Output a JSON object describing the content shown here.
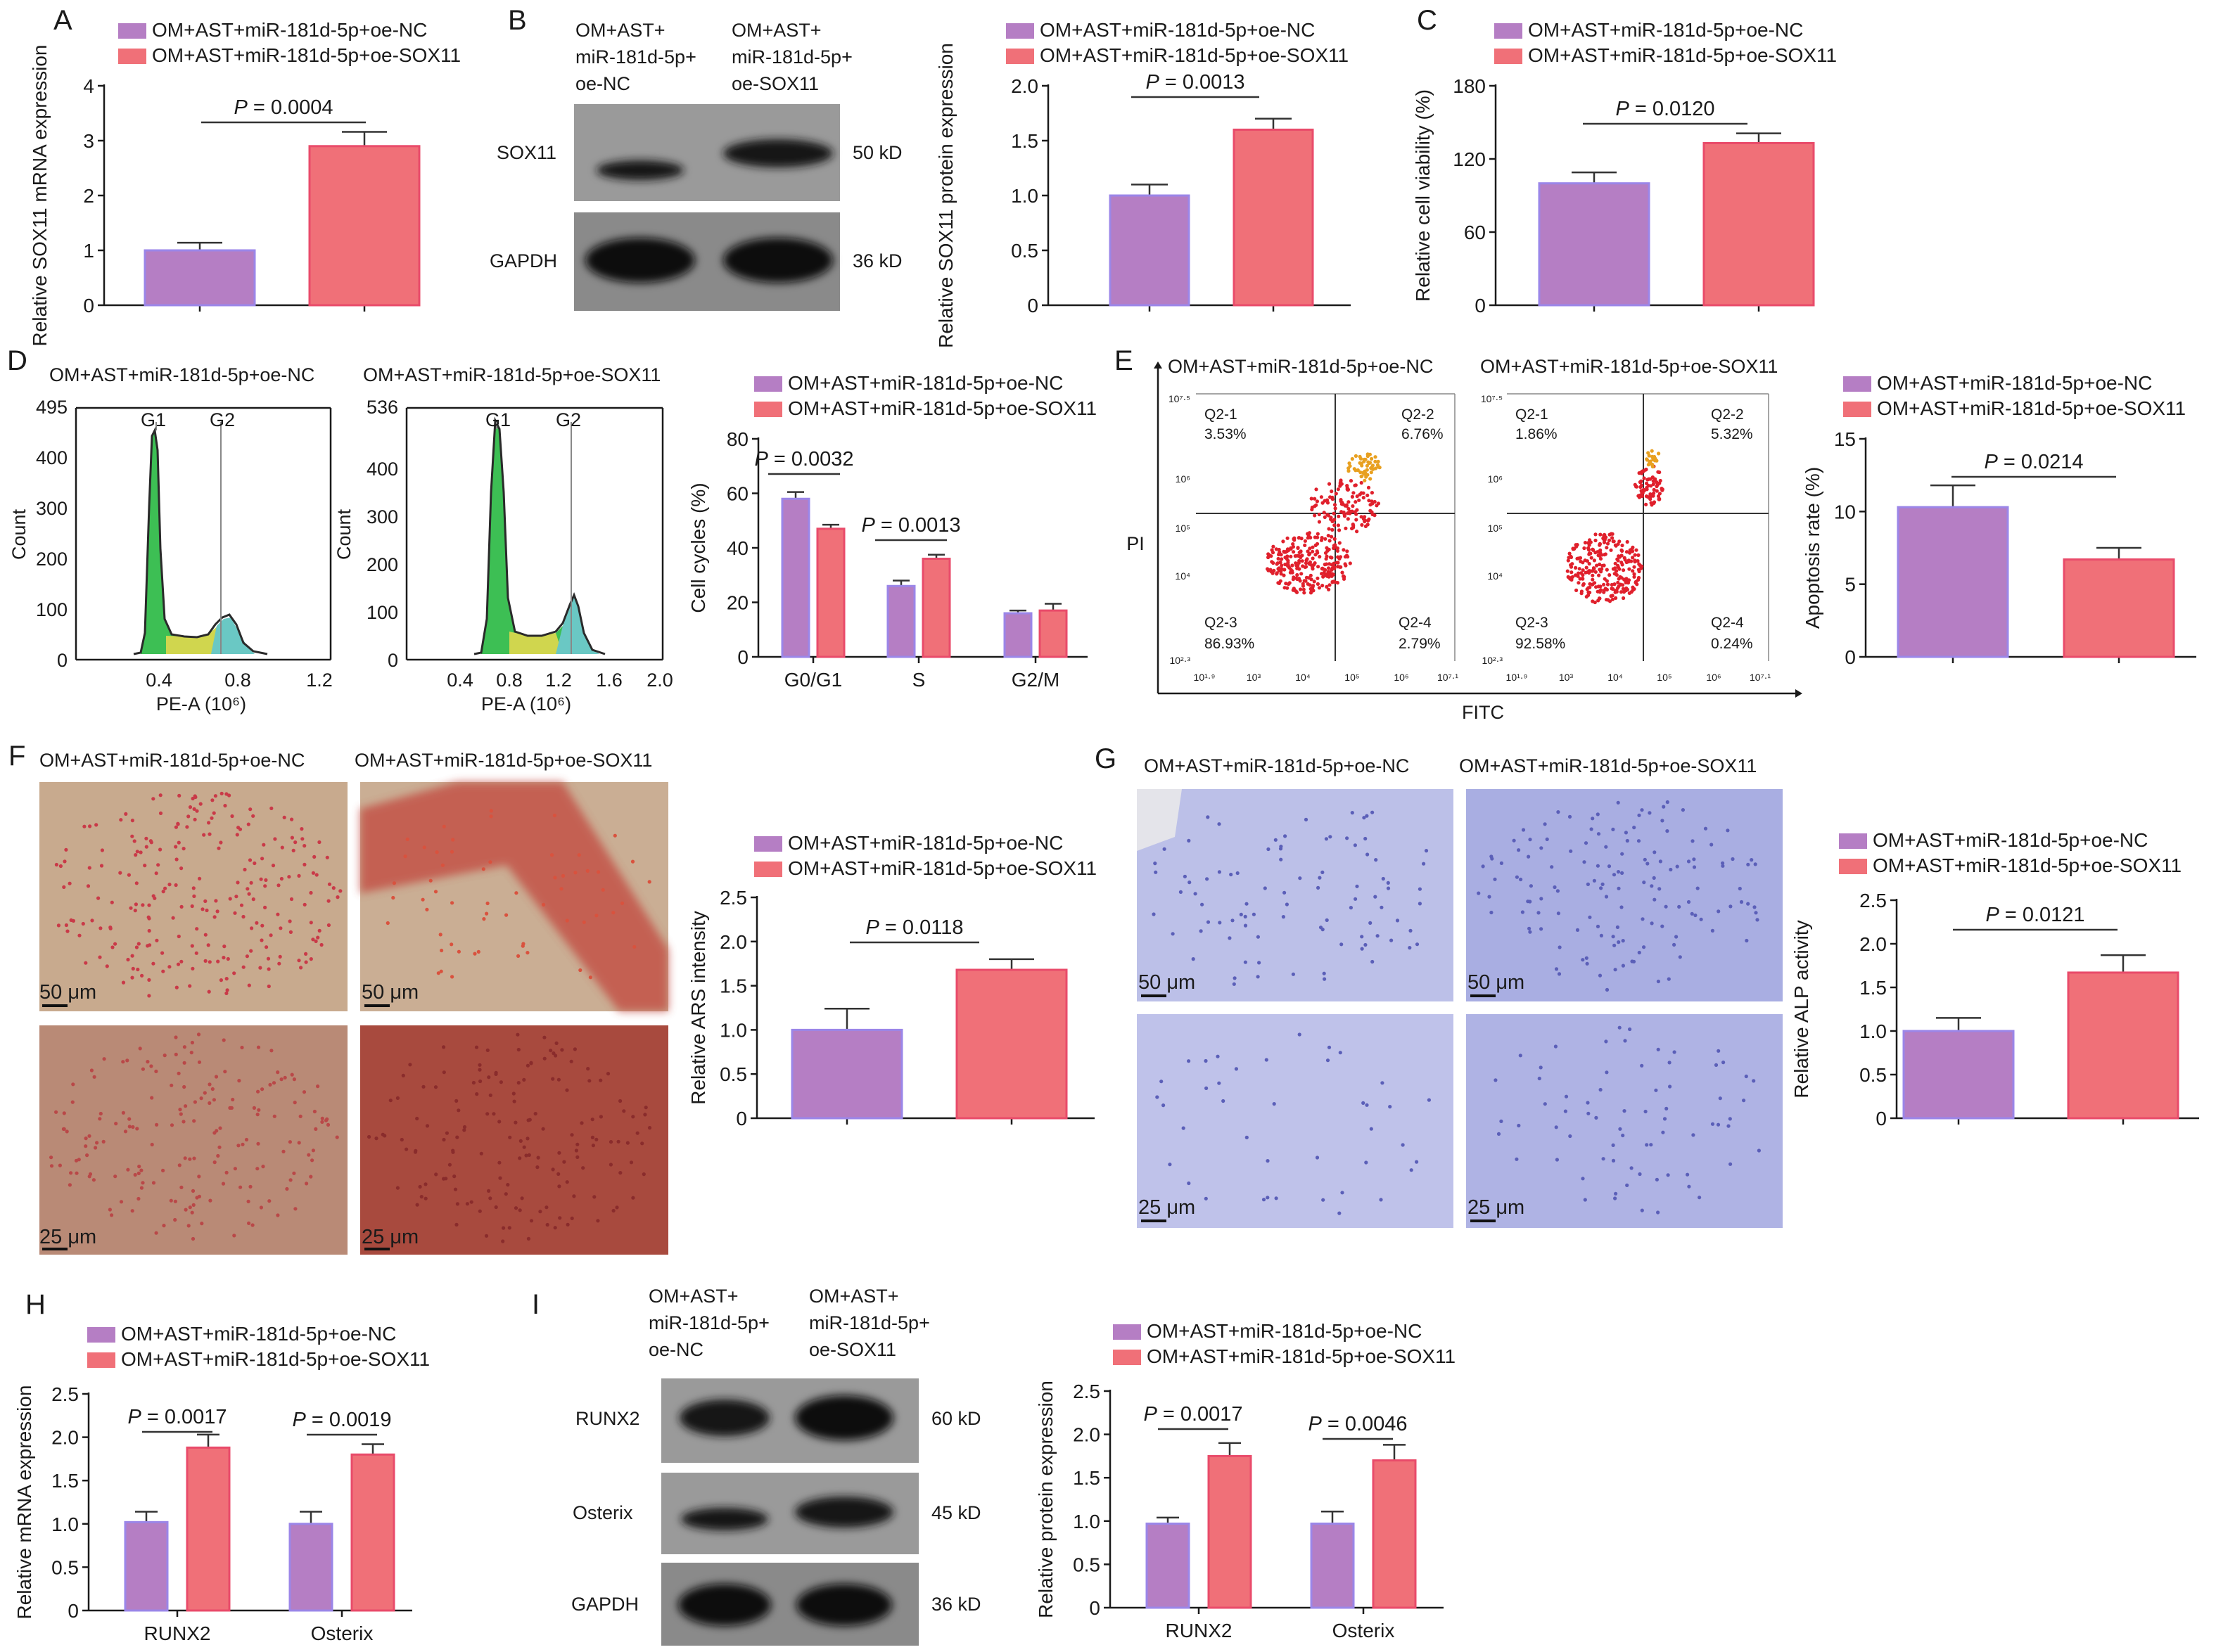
{
  "colors": {
    "nc": "#b57ec4",
    "nc_edge": "#9b86e8",
    "sox": "#f07078",
    "sox_edge": "#e94b6a",
    "axis": "#1a1a1a",
    "hist_green": "#3dbf54",
    "hist_yellow": "#d0d64e",
    "hist_teal": "#6ac8c4",
    "flow_red": "#e0202c",
    "blot_dark": "#141414",
    "blot_bg": "#8a8a8a",
    "ars_tissue": "#c9a98c",
    "ars_red": "#c23a3a",
    "alp_bg": "#b9bde6",
    "alp_cell": "#5b5fb8"
  },
  "groups": {
    "nc": "OM+AST+miR-181d-5p+oe-NC",
    "sox": "OM+AST+miR-181d-5p+oe-SOX11",
    "nc_blot": [
      "OM+AST+",
      "miR-181d-5p+",
      "oe-NC"
    ],
    "sox_blot": [
      "OM+AST+",
      "miR-181d-5p+",
      "oe-SOX11"
    ]
  },
  "panel_labels": [
    "A",
    "B",
    "C",
    "D",
    "E",
    "F",
    "G",
    "H",
    "I"
  ],
  "chart_data": [
    {
      "panel": "A",
      "type": "bar",
      "categories": [
        "OM+AST+miR-181d-5p+oe-NC",
        "OM+AST+miR-181d-5p+oe-SOX11"
      ],
      "values": [
        1.0,
        2.9
      ],
      "errors": [
        0.14,
        0.26
      ],
      "ylabel": "Relative SOX11 mRNA expression",
      "ylim": [
        0,
        4
      ],
      "yticks": [
        "0",
        "1",
        "2",
        "3",
        "4"
      ],
      "significance": "P = 0.0004"
    },
    {
      "panel": "B",
      "type": "bar",
      "categories": [
        "OM+AST+miR-181d-5p+oe-NC",
        "OM+AST+miR-181d-5p+oe-SOX11"
      ],
      "values": [
        1.0,
        1.6
      ],
      "errors": [
        0.1,
        0.1
      ],
      "ylabel": "Relative SOX11 protein expression",
      "ylim": [
        0,
        2.0
      ],
      "yticks": [
        "0",
        "0.5",
        "1.0",
        "1.5",
        "2.0"
      ],
      "significance": "P = 0.0013"
    },
    {
      "panel": "C",
      "type": "bar",
      "categories": [
        "OM+AST+miR-181d-5p+oe-NC",
        "OM+AST+miR-181d-5p+oe-SOX11"
      ],
      "values": [
        100,
        133
      ],
      "errors": [
        9,
        8
      ],
      "ylabel": "Relative cell viability (%)",
      "ylim": [
        0,
        180
      ],
      "yticks": [
        "0",
        "60",
        "120",
        "180"
      ],
      "significance": "P = 0.0120"
    },
    {
      "panel": "D",
      "type": "bar",
      "categories": [
        "G0/G1",
        "S",
        "G2/M"
      ],
      "series": [
        {
          "name": "OM+AST+miR-181d-5p+oe-NC",
          "values": [
            58,
            26,
            16
          ],
          "errors": [
            2.5,
            2,
            1
          ]
        },
        {
          "name": "OM+AST+miR-181d-5p+oe-SOX11",
          "values": [
            47,
            36,
            17
          ],
          "errors": [
            1.5,
            1.5,
            2.5
          ]
        }
      ],
      "ylabel": "Cell cycles (%)",
      "ylim": [
        0,
        80
      ],
      "yticks": [
        "0",
        "20",
        "40",
        "60",
        "80"
      ],
      "significance": [
        {
          "categories": [
            "G0/G1"
          ],
          "label": "P = 0.0032"
        },
        {
          "categories": [
            "S"
          ],
          "label": "P = 0.0013"
        }
      ]
    },
    {
      "panel": "D-histogram",
      "type": "area",
      "title": "OM+AST+miR-181d-5p+oe-NC",
      "x": [
        0.0,
        0.3,
        0.4,
        0.5,
        0.6,
        0.72,
        0.8,
        0.9
      ],
      "y": [
        0,
        5,
        490,
        60,
        50,
        90,
        40,
        0
      ],
      "xlabel": "PE-A (10⁶)",
      "ylabel": "Count",
      "ylim": [
        0,
        495
      ],
      "yticks": [
        "0",
        "100",
        "200",
        "300",
        "400",
        "495"
      ],
      "xticks": [
        "0.4",
        "0.8",
        "1.2"
      ],
      "annotations": [
        "G1",
        "G2"
      ]
    },
    {
      "panel": "D-histogram",
      "type": "area",
      "title": "OM+AST+miR-181d-5p+oe-SOX11",
      "x": [
        0.4,
        0.6,
        0.75,
        0.9,
        1.1,
        1.3,
        1.5,
        1.6
      ],
      "y": [
        0,
        5,
        530,
        60,
        80,
        130,
        20,
        0
      ],
      "xlabel": "PE-A (10⁶)",
      "ylabel": "Count",
      "ylim": [
        0,
        536
      ],
      "yticks": [
        "0",
        "100",
        "200",
        "300",
        "400",
        "536"
      ],
      "xticks": [
        "0.4",
        "0.8",
        "1.2",
        "1.6",
        "2.0"
      ],
      "annotations": [
        "G1",
        "G2"
      ]
    },
    {
      "panel": "E-flow",
      "type": "scatter",
      "title": "OM+AST+miR-181d-5p+oe-NC",
      "xlabel": "FITC",
      "ylabel": "PI",
      "quadrants": [
        {
          "name": "Q2-1",
          "value": "3.53%"
        },
        {
          "name": "Q2-2",
          "value": "6.76%"
        },
        {
          "name": "Q2-3",
          "value": "86.93%"
        },
        {
          "name": "Q2-4",
          "value": "2.79%"
        }
      ]
    },
    {
      "panel": "E-flow",
      "type": "scatter",
      "title": "OM+AST+miR-181d-5p+oe-SOX11",
      "xlabel": "FITC",
      "ylabel": "PI",
      "quadrants": [
        {
          "name": "Q2-1",
          "value": "1.86%"
        },
        {
          "name": "Q2-2",
          "value": "5.32%"
        },
        {
          "name": "Q2-3",
          "value": "92.58%"
        },
        {
          "name": "Q2-4",
          "value": "0.24%"
        }
      ]
    },
    {
      "panel": "E",
      "type": "bar",
      "categories": [
        "OM+AST+miR-181d-5p+oe-NC",
        "OM+AST+miR-181d-5p+oe-SOX11"
      ],
      "values": [
        10.3,
        6.7
      ],
      "errors": [
        1.5,
        0.8
      ],
      "ylabel": "Apoptosis rate (%)",
      "ylim": [
        0,
        15
      ],
      "yticks": [
        "0",
        "5",
        "10",
        "15"
      ],
      "significance": "P = 0.0214"
    },
    {
      "panel": "F",
      "type": "bar",
      "categories": [
        "OM+AST+miR-181d-5p+oe-NC",
        "OM+AST+miR-181d-5p+oe-SOX11"
      ],
      "values": [
        1.0,
        1.68
      ],
      "errors": [
        0.24,
        0.12
      ],
      "ylabel": "Relative ARS intensity",
      "ylim": [
        0,
        2.5
      ],
      "yticks": [
        "0",
        "0.5",
        "1.0",
        "1.5",
        "2.0",
        "2.5"
      ],
      "significance": "P = 0.0118"
    },
    {
      "panel": "G",
      "type": "bar",
      "categories": [
        "OM+AST+miR-181d-5p+oe-NC",
        "OM+AST+miR-181d-5p+oe-SOX11"
      ],
      "values": [
        1.0,
        1.67
      ],
      "errors": [
        0.15,
        0.2
      ],
      "ylabel": "Relative ALP activity",
      "ylim": [
        0,
        2.5
      ],
      "yticks": [
        "0",
        "0.5",
        "1.0",
        "1.5",
        "2.0",
        "2.5"
      ],
      "significance": "P = 0.0121"
    },
    {
      "panel": "H",
      "type": "bar",
      "categories": [
        "RUNX2",
        "Osterix"
      ],
      "series": [
        {
          "name": "OM+AST+miR-181d-5p+oe-NC",
          "values": [
            1.02,
            1.0
          ],
          "errors": [
            0.12,
            0.14
          ]
        },
        {
          "name": "OM+AST+miR-181d-5p+oe-SOX11",
          "values": [
            1.88,
            1.8
          ],
          "errors": [
            0.15,
            0.12
          ]
        }
      ],
      "ylabel": "Relative mRNA expression",
      "ylim": [
        0,
        2.5
      ],
      "yticks": [
        "0",
        "0.5",
        "1.0",
        "1.5",
        "2.0",
        "2.5"
      ],
      "significance": [
        {
          "categories": [
            "RUNX2"
          ],
          "label": "P = 0.0017"
        },
        {
          "categories": [
            "Osterix"
          ],
          "label": "P = 0.0019"
        }
      ]
    },
    {
      "panel": "I",
      "type": "bar",
      "categories": [
        "RUNX2",
        "Osterix"
      ],
      "series": [
        {
          "name": "OM+AST+miR-181d-5p+oe-NC",
          "values": [
            0.97,
            0.97
          ],
          "errors": [
            0.07,
            0.14
          ]
        },
        {
          "name": "OM+AST+miR-181d-5p+oe-SOX11",
          "values": [
            1.75,
            1.7
          ],
          "errors": [
            0.15,
            0.18
          ]
        }
      ],
      "ylabel": "Relative protein expression",
      "ylim": [
        0,
        2.5
      ],
      "yticks": [
        "0",
        "0.5",
        "1.0",
        "1.5",
        "2.0",
        "2.5"
      ],
      "significance": [
        {
          "categories": [
            "RUNX2"
          ],
          "label": "P = 0.0017"
        },
        {
          "categories": [
            "Osterix"
          ],
          "label": "P = 0.0046"
        }
      ]
    }
  ],
  "blots": {
    "B": {
      "rows": [
        {
          "name": "SOX11",
          "size": "50 kD"
        },
        {
          "name": "GAPDH",
          "size": "36 kD"
        }
      ]
    },
    "I": {
      "rows": [
        {
          "name": "RUNX2",
          "size": "60 kD"
        },
        {
          "name": "Osterix",
          "size": "45 kD"
        },
        {
          "name": "GAPDH",
          "size": "36 kD"
        }
      ]
    }
  },
  "flow_axis": {
    "y_ticks_nc": [
      "10⁷·⁵",
      "10⁶",
      "10⁵",
      "10⁴",
      "10²·³"
    ],
    "x_ticks_nc": [
      "10¹·⁹",
      "10³",
      "10⁴",
      "10⁵",
      "10⁶",
      "10⁷·¹"
    ],
    "y_ticks_sox": [
      "10⁷·⁵",
      "10⁶",
      "10⁵",
      "10⁴",
      "10²·³"
    ],
    "x_ticks_sox": [
      "10¹·⁹",
      "10³",
      "10⁴",
      "10⁵",
      "10⁶",
      "10⁷·¹"
    ]
  },
  "scale_bars": {
    "top": "50 μm",
    "bottom": "25 μm"
  }
}
